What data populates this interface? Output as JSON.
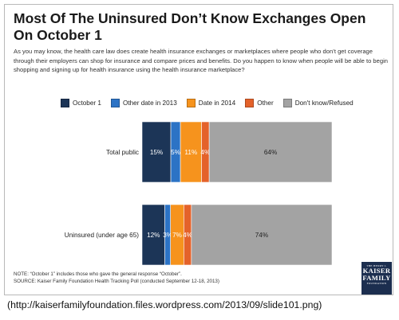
{
  "title": "Most Of The Uninsured Don’t Know Exchanges Open On October 1",
  "question": "As you may know, the health care law does create health insurance exchanges or marketplaces where people who don’t get coverage through their employers can shop for insurance and compare prices and benefits. Do you happen to know when people will be able to begin shopping and signing up for health insurance using the health insurance marketplace?",
  "notes": {
    "note": "NOTE: “October 1” includes those who gave the general response “October”.",
    "source": "SOURCE: Kaiser Family Foundation Health Tracking Poll (conducted September 12-18, 2013)"
  },
  "logo": {
    "top": "THE HENRY J.",
    "line1": "KAISER",
    "line2": "FAMILY",
    "bottom": "FOUNDATION"
  },
  "caption": "(http://kaiserfamilyfoundation.files.wordpress.com/2013/09/slide101.png)",
  "colors": {
    "October 1": "#1c3557",
    "Other date in 2013": "#2c73c5",
    "Date in 2014": "#f6931d",
    "Other": "#e4622a",
    "Don't know/Refused": "#a3a3a3"
  },
  "chart_data": {
    "type": "bar",
    "orientation": "horizontal",
    "stacked": true,
    "categories": [
      "Total public",
      "Uninsured (under age 65)"
    ],
    "series": [
      {
        "name": "October 1",
        "values": [
          15,
          12
        ]
      },
      {
        "name": "Other date in 2013",
        "values": [
          5,
          3
        ]
      },
      {
        "name": "Date in 2014",
        "values": [
          11,
          7
        ]
      },
      {
        "name": "Other",
        "values": [
          4,
          4
        ]
      },
      {
        "name": "Don't know/Refused",
        "values": [
          64,
          74
        ]
      }
    ],
    "value_format": "{v}%",
    "legend_position": "top",
    "grid": false
  }
}
